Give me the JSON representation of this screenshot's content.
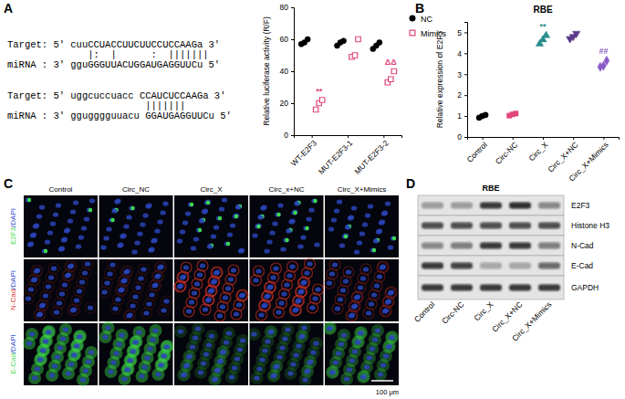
{
  "panel_labels": [
    "A",
    "B",
    "C",
    "D"
  ],
  "alignment": {
    "rows": [
      {
        "target": "Target: 5' cuuCCUACCUUCUUCCUCCAAGa 3'",
        "pairs": "              |:  |      :  |||||||",
        "mirna": "miRNA : 3' gguGGGUUACUGGAUGAGGUUCu 5'"
      },
      {
        "target": "Target: 5' uggcuccuacc CCAUCUCCAAGa 3'",
        "pairs": "                        |||||||",
        "mirna": "miRNA : 3' ggugggguuacu GGAUGAGGUUCu 5'"
      }
    ]
  },
  "chart_data": [
    {
      "type": "dot",
      "categories": [
        "WT-E2F3",
        "MUT-E2F3-1",
        "MUT-E2F3-2"
      ],
      "y_label": "Relative luciferase activity (R/F)",
      "ylim": [
        0,
        80
      ],
      "yticks": [
        0,
        20,
        40,
        60,
        80
      ],
      "legend": "upper right",
      "series": [
        {
          "name": "NC",
          "color": "#000000",
          "marker": "circle",
          "values": [
            [
              57,
              58,
              60
            ],
            [
              56,
              58,
              59
            ],
            [
              54,
              56,
              58
            ]
          ]
        },
        {
          "name": "Mimics",
          "color": "#e0457b",
          "marker": "square-open",
          "values": [
            [
              16,
              20,
              22
            ],
            [
              49,
              50,
              60
            ],
            [
              33,
              35,
              40
            ]
          ],
          "annotations": [
            "**",
            null,
            "ΔΔ"
          ]
        }
      ]
    },
    {
      "type": "dot",
      "title": "RBE",
      "categories": [
        "Control",
        "Circ-NC",
        "Circ_X",
        "Circ_X+NC",
        "Circ_X+Mimics"
      ],
      "y_label": "Relative expression of E2F3",
      "ylim": [
        0,
        5.5
      ],
      "yticks": [
        0,
        1,
        2,
        3,
        4,
        5
      ],
      "series": [
        {
          "colors": [
            "#000000",
            "#e0457b",
            "#2b8c8c",
            "#5b3a8c",
            "#8a5cc8"
          ],
          "markers": [
            "circle",
            "square",
            "triangle",
            "triangle-down",
            "diamond"
          ],
          "values": [
            [
              0.92,
              1.0,
              1.05
            ],
            [
              1.02,
              1.08,
              1.12
            ],
            [
              4.45,
              4.65,
              4.85
            ],
            [
              4.7,
              4.8,
              4.95
            ],
            [
              3.35,
              3.4,
              3.65
            ]
          ],
          "annotations": [
            null,
            null,
            "**",
            null,
            "##"
          ]
        }
      ]
    }
  ],
  "immunofluorescence": {
    "columns": [
      "Control",
      "Circ_NC",
      "Circ_X",
      "Circ_x+NC",
      "Circ_X+Mimics"
    ],
    "rows": [
      "E2F3/DAPI",
      "N-Cad/DAPI",
      "E-Cad/DAPI"
    ],
    "scale_bar": "100 μm"
  },
  "western_blot": {
    "title": "RBE",
    "bands": [
      "E2F3",
      "Histone H3",
      "N-Cad",
      "E-Cad",
      "GAPDH"
    ],
    "lanes": [
      "Control",
      "Circ-NC",
      "Circ_X",
      "Circ_X+NC",
      "Circ_X+Mimics"
    ]
  }
}
